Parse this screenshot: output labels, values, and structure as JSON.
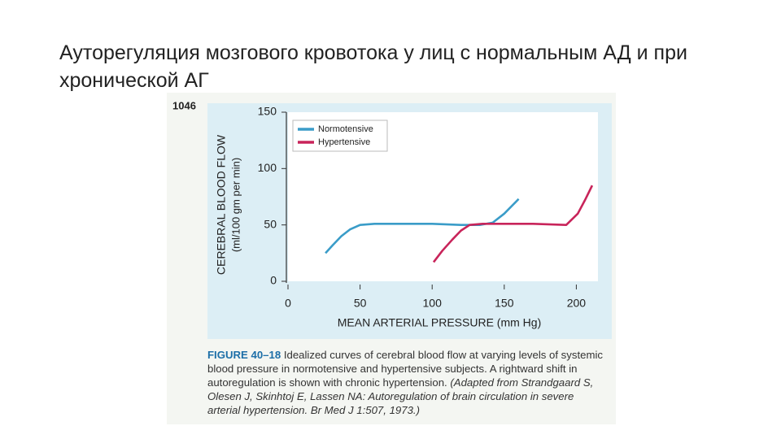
{
  "slide_title": "Ауторегуляция мозгового кровотока у лиц с нормальным АД и при хронической АГ",
  "page_number": "1046",
  "chart_data": {
    "type": "line",
    "xlabel": "MEAN ARTERIAL PRESSURE (mm Hg)",
    "ylabel": "CEREBRAL BLOOD FLOW",
    "ylabel_units": "(ml/100 gm per min)",
    "xlim": [
      0,
      215
    ],
    "ylim": [
      0,
      150
    ],
    "xticks": [
      0,
      50,
      100,
      150,
      200
    ],
    "yticks": [
      0,
      50,
      100,
      150
    ],
    "legend": "top-left",
    "series": [
      {
        "name": "Normotensive",
        "color": "#3a9cc8",
        "x": [
          26,
          31,
          37,
          43,
          50,
          60,
          80,
          100,
          120,
          133,
          142,
          150,
          160
        ],
        "values": [
          25,
          32,
          40,
          46,
          50,
          51,
          51,
          51,
          50,
          50,
          52,
          60,
          73
        ]
      },
      {
        "name": "Hypertensive",
        "color": "#c8245a",
        "x": [
          101,
          107,
          114,
          120,
          126,
          135,
          150,
          170,
          193,
          201,
          206,
          211
        ],
        "values": [
          17,
          27,
          37,
          45,
          50,
          51,
          51,
          51,
          50,
          60,
          72,
          85
        ]
      }
    ]
  },
  "caption": {
    "label": "FIGURE 40–18",
    "text": "Idealized curves of cerebral blood flow at varying levels of systemic blood pressure in normotensive and hypertensive subjects. A rightward shift in autoregulation is shown with chronic hypertension.",
    "source": "(Adapted from Strandgaard S, Olesen J, Skinhtoj E, Lassen NA: Autoregulation of brain circulation in severe arterial hypertension. Br Med J 1:507, 1973.)"
  }
}
